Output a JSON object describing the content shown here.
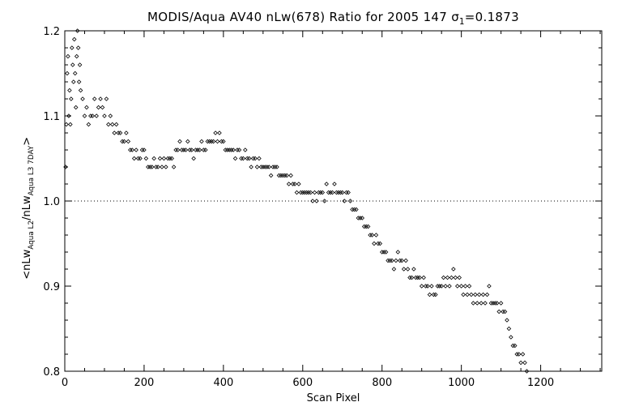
{
  "title": {
    "main": "MODIS/Aqua AV40 nLw(678) Ratio for 2005 147 ",
    "sigma_symbol": "σ",
    "sigma_sub": "1",
    "sigma_value": "=0.1873"
  },
  "axis_label_parts": {
    "x": "Scan Pixel",
    "y_open": "<nLw",
    "y_sub1": "Aqua L2",
    "y_mid": "/nLw",
    "y_sub2": "Aqua L3 7DAY",
    "y_close": ">"
  },
  "chart_data": {
    "type": "scatter",
    "title": "MODIS/Aqua AV40 nLw(678) Ratio for 2005 147 σ1=0.1873",
    "xlabel": "Scan Pixel",
    "ylabel": "<nLw_Aqua L2/nLw_Aqua L3 7DAY>",
    "xlim": [
      0,
      1354
    ],
    "ylim": [
      0.8,
      1.2
    ],
    "x_ticks": [
      0,
      200,
      400,
      600,
      800,
      1000,
      1200
    ],
    "y_ticks": [
      0.8,
      0.9,
      1.0,
      1.1,
      1.2
    ],
    "x_tick_labels": [
      "0",
      "200",
      "400",
      "600",
      "800",
      "1000",
      "1200"
    ],
    "y_tick_labels": [
      "0.8",
      "0.9",
      "1.0",
      "1.1",
      "1.2"
    ],
    "reference_line": {
      "y": 1.0,
      "style": "dotted"
    },
    "grid": false,
    "marker": "diamond",
    "series": [
      {
        "points": [
          [
            2,
            1.04
          ],
          [
            4,
            1.09
          ],
          [
            6,
            1.15
          ],
          [
            8,
            1.17
          ],
          [
            10,
            1.1
          ],
          [
            12,
            1.13
          ],
          [
            14,
            1.09
          ],
          [
            16,
            1.12
          ],
          [
            18,
            1.18
          ],
          [
            20,
            1.16
          ],
          [
            22,
            1.14
          ],
          [
            24,
            1.19
          ],
          [
            26,
            1.15
          ],
          [
            28,
            1.11
          ],
          [
            30,
            1.17
          ],
          [
            32,
            1.2
          ],
          [
            34,
            1.18
          ],
          [
            36,
            1.14
          ],
          [
            38,
            1.16
          ],
          [
            40,
            1.13
          ],
          [
            45,
            1.12
          ],
          [
            50,
            1.1
          ],
          [
            55,
            1.11
          ],
          [
            60,
            1.09
          ],
          [
            65,
            1.1
          ],
          [
            70,
            1.1
          ],
          [
            75,
            1.12
          ],
          [
            80,
            1.1
          ],
          [
            85,
            1.11
          ],
          [
            90,
            1.12
          ],
          [
            95,
            1.11
          ],
          [
            100,
            1.1
          ],
          [
            105,
            1.12
          ],
          [
            110,
            1.09
          ],
          [
            115,
            1.1
          ],
          [
            120,
            1.09
          ],
          [
            125,
            1.08
          ],
          [
            130,
            1.09
          ],
          [
            135,
            1.08
          ],
          [
            140,
            1.08
          ],
          [
            145,
            1.07
          ],
          [
            150,
            1.07
          ],
          [
            155,
            1.08
          ],
          [
            160,
            1.07
          ],
          [
            165,
            1.06
          ],
          [
            170,
            1.06
          ],
          [
            175,
            1.05
          ],
          [
            180,
            1.06
          ],
          [
            185,
            1.05
          ],
          [
            190,
            1.05
          ],
          [
            195,
            1.06
          ],
          [
            200,
            1.06
          ],
          [
            205,
            1.05
          ],
          [
            210,
            1.04
          ],
          [
            215,
            1.04
          ],
          [
            220,
            1.04
          ],
          [
            225,
            1.05
          ],
          [
            230,
            1.04
          ],
          [
            235,
            1.04
          ],
          [
            240,
            1.05
          ],
          [
            245,
            1.04
          ],
          [
            250,
            1.05
          ],
          [
            255,
            1.04
          ],
          [
            260,
            1.05
          ],
          [
            265,
            1.05
          ],
          [
            270,
            1.05
          ],
          [
            275,
            1.04
          ],
          [
            280,
            1.06
          ],
          [
            285,
            1.06
          ],
          [
            290,
            1.07
          ],
          [
            295,
            1.06
          ],
          [
            300,
            1.06
          ],
          [
            305,
            1.06
          ],
          [
            310,
            1.07
          ],
          [
            315,
            1.06
          ],
          [
            320,
            1.06
          ],
          [
            325,
            1.05
          ],
          [
            330,
            1.06
          ],
          [
            335,
            1.06
          ],
          [
            340,
            1.06
          ],
          [
            345,
            1.07
          ],
          [
            350,
            1.06
          ],
          [
            355,
            1.06
          ],
          [
            360,
            1.07
          ],
          [
            365,
            1.07
          ],
          [
            370,
            1.07
          ],
          [
            375,
            1.07
          ],
          [
            380,
            1.08
          ],
          [
            385,
            1.07
          ],
          [
            390,
            1.08
          ],
          [
            395,
            1.07
          ],
          [
            400,
            1.07
          ],
          [
            405,
            1.06
          ],
          [
            410,
            1.06
          ],
          [
            415,
            1.06
          ],
          [
            420,
            1.06
          ],
          [
            425,
            1.06
          ],
          [
            430,
            1.05
          ],
          [
            435,
            1.06
          ],
          [
            440,
            1.06
          ],
          [
            445,
            1.05
          ],
          [
            450,
            1.05
          ],
          [
            455,
            1.06
          ],
          [
            460,
            1.05
          ],
          [
            465,
            1.05
          ],
          [
            470,
            1.04
          ],
          [
            475,
            1.05
          ],
          [
            480,
            1.05
          ],
          [
            485,
            1.04
          ],
          [
            490,
            1.05
          ],
          [
            495,
            1.04
          ],
          [
            500,
            1.04
          ],
          [
            505,
            1.04
          ],
          [
            510,
            1.04
          ],
          [
            515,
            1.04
          ],
          [
            520,
            1.03
          ],
          [
            525,
            1.04
          ],
          [
            530,
            1.04
          ],
          [
            535,
            1.04
          ],
          [
            540,
            1.03
          ],
          [
            545,
            1.03
          ],
          [
            550,
            1.03
          ],
          [
            555,
            1.03
          ],
          [
            560,
            1.03
          ],
          [
            565,
            1.02
          ],
          [
            570,
            1.03
          ],
          [
            575,
            1.02
          ],
          [
            580,
            1.02
          ],
          [
            585,
            1.01
          ],
          [
            590,
            1.02
          ],
          [
            595,
            1.01
          ],
          [
            600,
            1.01
          ],
          [
            605,
            1.01
          ],
          [
            610,
            1.01
          ],
          [
            615,
            1.01
          ],
          [
            620,
            1.01
          ],
          [
            625,
            1.0
          ],
          [
            630,
            1.01
          ],
          [
            635,
            1.0
          ],
          [
            640,
            1.01
          ],
          [
            645,
            1.01
          ],
          [
            650,
            1.01
          ],
          [
            655,
            1.0
          ],
          [
            660,
            1.02
          ],
          [
            665,
            1.01
          ],
          [
            670,
            1.01
          ],
          [
            675,
            1.01
          ],
          [
            680,
            1.02
          ],
          [
            685,
            1.01
          ],
          [
            690,
            1.01
          ],
          [
            695,
            1.01
          ],
          [
            700,
            1.01
          ],
          [
            705,
            1.0
          ],
          [
            710,
            1.01
          ],
          [
            715,
            1.01
          ],
          [
            720,
            1.0
          ],
          [
            725,
            0.99
          ],
          [
            730,
            0.99
          ],
          [
            735,
            0.99
          ],
          [
            740,
            0.98
          ],
          [
            745,
            0.98
          ],
          [
            750,
            0.98
          ],
          [
            755,
            0.97
          ],
          [
            760,
            0.97
          ],
          [
            765,
            0.97
          ],
          [
            770,
            0.96
          ],
          [
            775,
            0.96
          ],
          [
            780,
            0.95
          ],
          [
            785,
            0.96
          ],
          [
            790,
            0.95
          ],
          [
            795,
            0.95
          ],
          [
            800,
            0.94
          ],
          [
            805,
            0.94
          ],
          [
            810,
            0.94
          ],
          [
            815,
            0.93
          ],
          [
            820,
            0.93
          ],
          [
            825,
            0.93
          ],
          [
            830,
            0.92
          ],
          [
            835,
            0.93
          ],
          [
            840,
            0.94
          ],
          [
            845,
            0.93
          ],
          [
            850,
            0.93
          ],
          [
            855,
            0.92
          ],
          [
            860,
            0.93
          ],
          [
            865,
            0.92
          ],
          [
            870,
            0.91
          ],
          [
            875,
            0.91
          ],
          [
            880,
            0.92
          ],
          [
            885,
            0.91
          ],
          [
            890,
            0.91
          ],
          [
            895,
            0.91
          ],
          [
            900,
            0.9
          ],
          [
            905,
            0.91
          ],
          [
            910,
            0.9
          ],
          [
            915,
            0.9
          ],
          [
            920,
            0.89
          ],
          [
            925,
            0.9
          ],
          [
            930,
            0.89
          ],
          [
            935,
            0.89
          ],
          [
            940,
            0.9
          ],
          [
            945,
            0.9
          ],
          [
            950,
            0.9
          ],
          [
            955,
            0.91
          ],
          [
            960,
            0.9
          ],
          [
            965,
            0.91
          ],
          [
            970,
            0.9
          ],
          [
            975,
            0.91
          ],
          [
            980,
            0.92
          ],
          [
            985,
            0.91
          ],
          [
            990,
            0.9
          ],
          [
            995,
            0.91
          ],
          [
            1000,
            0.9
          ],
          [
            1005,
            0.89
          ],
          [
            1010,
            0.9
          ],
          [
            1015,
            0.89
          ],
          [
            1020,
            0.9
          ],
          [
            1025,
            0.89
          ],
          [
            1030,
            0.88
          ],
          [
            1035,
            0.89
          ],
          [
            1040,
            0.88
          ],
          [
            1045,
            0.89
          ],
          [
            1050,
            0.88
          ],
          [
            1055,
            0.89
          ],
          [
            1060,
            0.88
          ],
          [
            1065,
            0.89
          ],
          [
            1070,
            0.9
          ],
          [
            1075,
            0.88
          ],
          [
            1080,
            0.88
          ],
          [
            1085,
            0.88
          ],
          [
            1090,
            0.88
          ],
          [
            1095,
            0.87
          ],
          [
            1100,
            0.88
          ],
          [
            1105,
            0.87
          ],
          [
            1110,
            0.87
          ],
          [
            1115,
            0.86
          ],
          [
            1120,
            0.85
          ],
          [
            1125,
            0.84
          ],
          [
            1130,
            0.83
          ],
          [
            1135,
            0.83
          ],
          [
            1140,
            0.82
          ],
          [
            1145,
            0.82
          ],
          [
            1150,
            0.81
          ],
          [
            1155,
            0.82
          ],
          [
            1160,
            0.81
          ],
          [
            1165,
            0.8
          ]
        ]
      }
    ]
  }
}
